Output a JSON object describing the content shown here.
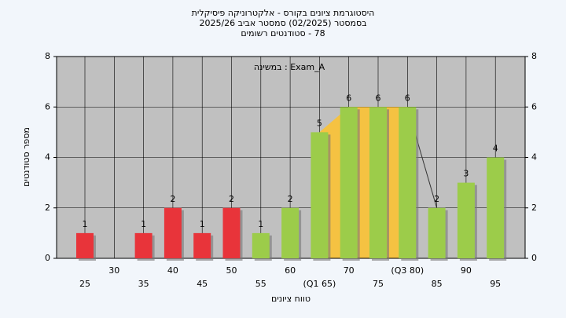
{
  "chart_data": {
    "type": "bar",
    "title": [
      "היסטוגרמת ציונים בקורס - אלקטרוניקה פיסיקלית",
      "בסמסטר  (02/2025)  סמסטר אביב 2025/26",
      "78 - סטודנטים רשומים"
    ],
    "annotation": "Exam_A : במשינה",
    "x_label": "טווח ציונים",
    "y_label": "מספר סטודנטים",
    "categories": [
      "25",
      "30",
      "35",
      "40",
      "45",
      "50",
      "55",
      "60",
      "(Q1 65)",
      "70",
      "75",
      "(Q3 80)",
      "85",
      "90",
      "95"
    ],
    "values": [
      1,
      0,
      1,
      2,
      1,
      2,
      1,
      2,
      5,
      6,
      6,
      6,
      2,
      3,
      4
    ],
    "colors": [
      "#e8343a",
      "#e8343a",
      "#e8343a",
      "#e8343a",
      "#e8343a",
      "#e8343a",
      "#9ccc4a",
      "#9ccc4a",
      "#9ccc4a",
      "#9ccc4a",
      "#9ccc4a",
      "#9ccc4a",
      "#9ccc4a",
      "#9ccc4a",
      "#9ccc4a"
    ],
    "ylim": [
      0,
      8
    ],
    "yticks": [
      0,
      2,
      4,
      6,
      8
    ],
    "grid": true
  }
}
